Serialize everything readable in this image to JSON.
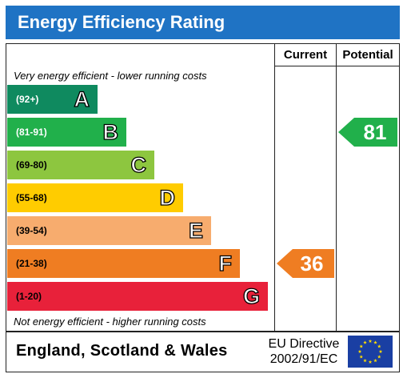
{
  "header": {
    "title": "Energy Efficiency Rating"
  },
  "columns": {
    "current": "Current",
    "potential": "Potential"
  },
  "notes": {
    "top": "Very energy efficient - lower running costs",
    "bottom": "Not energy efficient - higher running costs"
  },
  "footer": {
    "country": "England, Scotland & Wales",
    "directive_line1": "EU Directive",
    "directive_line2": "2002/91/EC"
  },
  "chart_data": {
    "type": "bar",
    "title": "Energy Efficiency Rating",
    "bands": [
      {
        "letter": "A",
        "range": "(92+)",
        "color": "#0f8a5f",
        "light_text": true
      },
      {
        "letter": "B",
        "range": "(81-91)",
        "color": "#21b04b",
        "light_text": true
      },
      {
        "letter": "C",
        "range": "(69-80)",
        "color": "#8dc63f",
        "light_text": false
      },
      {
        "letter": "D",
        "range": "(55-68)",
        "color": "#ffcc00",
        "light_text": false
      },
      {
        "letter": "E",
        "range": "(39-54)",
        "color": "#f7ac6e",
        "light_text": false
      },
      {
        "letter": "F",
        "range": "(21-38)",
        "color": "#ef7d22",
        "light_text": false
      },
      {
        "letter": "G",
        "range": "(1-20)",
        "color": "#e8213a",
        "light_text": false
      }
    ],
    "current": {
      "value": 36,
      "band": "F",
      "color": "#ef7d22"
    },
    "potential": {
      "value": 81,
      "band": "B",
      "color": "#21b04b"
    }
  }
}
